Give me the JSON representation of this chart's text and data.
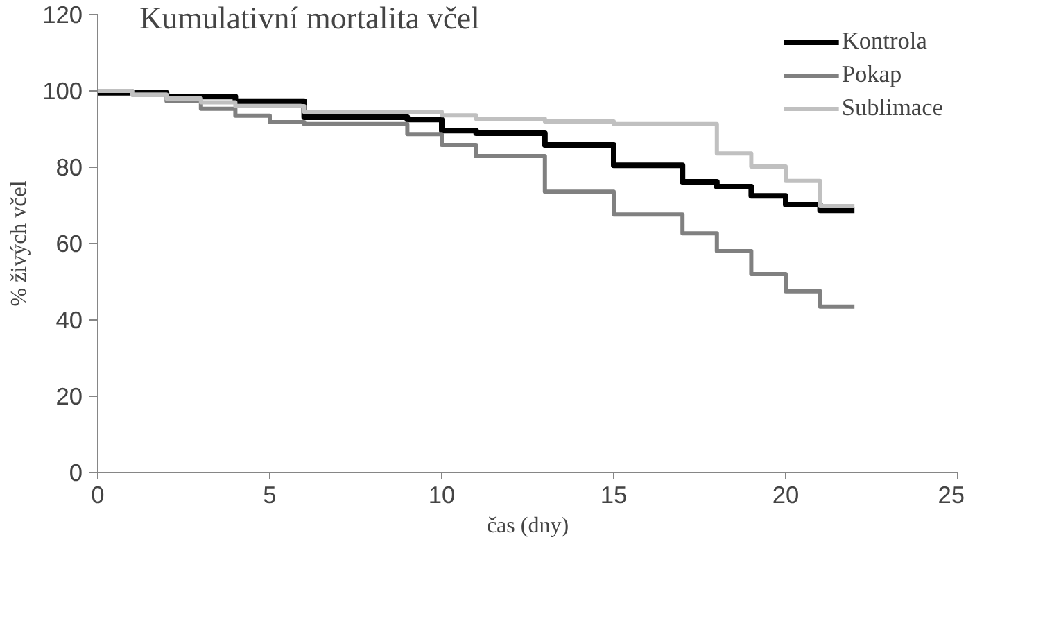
{
  "chart_data": {
    "type": "step",
    "title": "Kumulativní mortalita včel",
    "xlabel": "čas (dny)",
    "ylabel": "% živých včel",
    "xlim": [
      0,
      25
    ],
    "xticks": [
      0,
      5,
      10,
      15,
      20,
      25
    ],
    "ylim": [
      0,
      120
    ],
    "yticks": [
      0,
      20,
      40,
      60,
      80,
      100,
      120
    ],
    "grid": false,
    "legend": "top right",
    "marker": "none",
    "line_style": "solid",
    "series": [
      {
        "name": "Kontrola",
        "color": "#000000",
        "x": [
          0,
          2,
          4,
          6,
          9,
          10,
          11,
          13,
          15,
          17,
          18,
          19,
          20,
          21,
          22
        ],
        "values": [
          99.5,
          98.5,
          97.3,
          93.1,
          92.5,
          89.6,
          88.9,
          85.8,
          80.5,
          76.2,
          74.9,
          72.5,
          70.2,
          68.7,
          68.7
        ]
      },
      {
        "name": "Pokap",
        "color": "#808080",
        "x": [
          0,
          1,
          2,
          3,
          4,
          5,
          6,
          9,
          10,
          11,
          13,
          15,
          17,
          18,
          19,
          20,
          21,
          22
        ],
        "values": [
          100,
          99,
          97.3,
          95.3,
          93.5,
          91.8,
          91.3,
          88.7,
          85.8,
          82.9,
          73.6,
          67.6,
          62.7,
          58,
          52,
          47.5,
          43.5,
          43.5
        ]
      },
      {
        "name": "Sublimace",
        "color": "#c0c0c0",
        "x": [
          0,
          1,
          2,
          3,
          4,
          6,
          10,
          11,
          13,
          15,
          18,
          19,
          20,
          21,
          22
        ],
        "values": [
          100,
          99,
          98,
          97,
          96,
          94.5,
          93.6,
          92.7,
          92,
          91.3,
          83.6,
          80.2,
          76.4,
          69.8,
          69.8
        ]
      }
    ]
  }
}
